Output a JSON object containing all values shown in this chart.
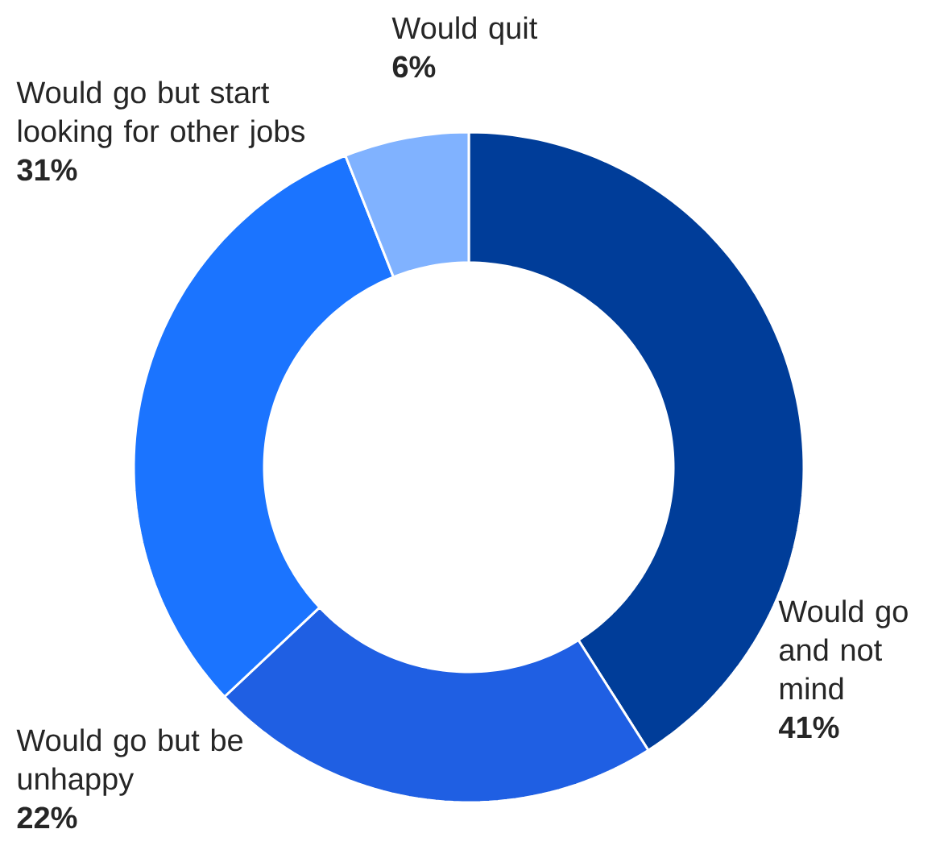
{
  "chart_data": {
    "type": "donut",
    "categories": [
      "Would go and not mind",
      "Would go but be unhappy",
      "Would go but start looking for other jobs",
      "Would quit"
    ],
    "values": [
      41,
      22,
      31,
      6
    ],
    "value_labels": [
      "41%",
      "22%",
      "31%",
      "6%"
    ],
    "colors": [
      "#003d99",
      "#1f5fe3",
      "#1b74ff",
      "#80b2ff"
    ]
  }
}
